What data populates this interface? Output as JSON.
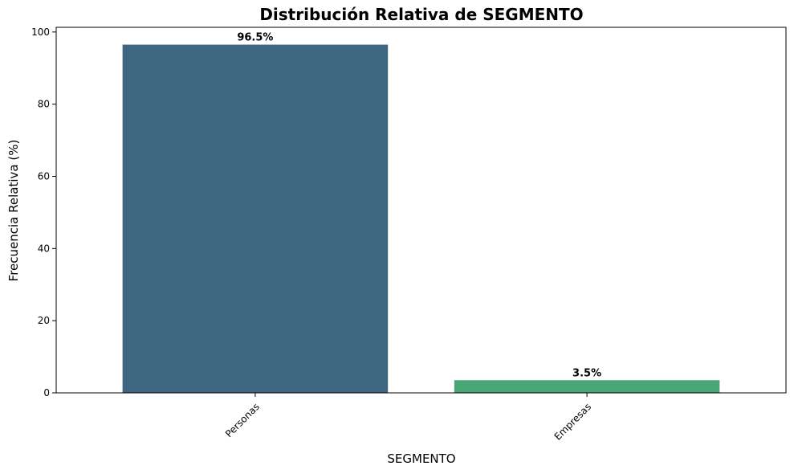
{
  "chart_data": {
    "type": "bar",
    "title": "Distribución Relativa de SEGMENTO",
    "xlabel": "SEGMENTO",
    "ylabel": "Frecuencia Relativa (%)",
    "categories": [
      "Personas",
      "Empresas"
    ],
    "values": [
      96.5,
      3.5
    ],
    "data_labels": [
      "96.5%",
      "3.5%"
    ],
    "colors": [
      "#3e6680",
      "#48a574"
    ],
    "ylim": [
      0,
      101.3
    ],
    "yticks": [
      0,
      20,
      40,
      60,
      80,
      100
    ],
    "ytick_labels": [
      "0",
      "20",
      "40",
      "60",
      "80",
      "100"
    ],
    "grid": false,
    "legend": "none"
  }
}
